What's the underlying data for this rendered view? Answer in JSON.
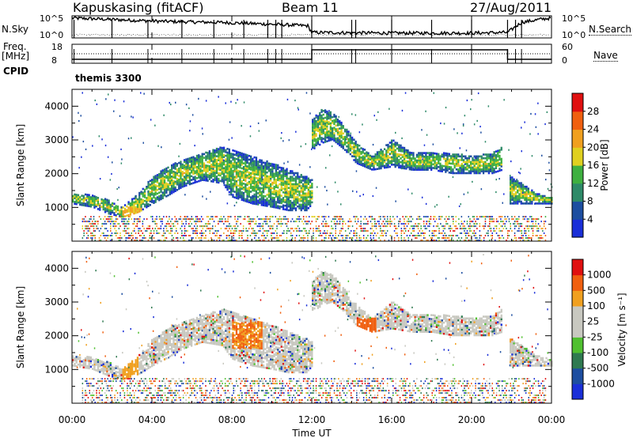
{
  "header": {
    "station": "Kapuskasing (fitACF)",
    "beam": "Beam 11",
    "date": "27/Aug/2011"
  },
  "status_panel": {
    "nsky_label": "N.Sky",
    "nsearch_label": "N.Search",
    "nsky_ticks": [
      "10^5",
      "10^0"
    ],
    "nsearch_ticks": [
      "10^5",
      "10^0"
    ],
    "freq_label_1": "Freq.",
    "freq_label_2": "[MHz]",
    "freq_ticks": [
      "18",
      "8"
    ],
    "nave_label": "Nave",
    "nave_ticks": [
      "60",
      "0"
    ],
    "cpid_label": "CPID",
    "cpid_value": "themis 3300"
  },
  "colors": {
    "power_scale": [
      "#1a2fd8",
      "#1d4ea0",
      "#2e8a68",
      "#3fb040",
      "#e0d020",
      "#f0a020",
      "#f06010",
      "#e01010"
    ],
    "velocity_scale": [
      "#e01010",
      "#f06010",
      "#f0a020",
      "#c8c8c0",
      "#c8c8c0",
      "#50c030",
      "#2f7a50",
      "#1d4ea0",
      "#1a2fd8"
    ],
    "ground_scatter": "#c8c8c0"
  },
  "chart_data": [
    {
      "type": "heatmap",
      "panel": "power",
      "xlabel": "Time UT",
      "ylabel": "Slant Range [km]",
      "xlim": [
        0,
        24
      ],
      "ylim": [
        0,
        4500
      ],
      "x_tick_labels": [
        "00:00",
        "04:00",
        "08:00",
        "12:00",
        "16:00",
        "20:00",
        "00:00"
      ],
      "y_ticks": [
        1000,
        2000,
        3000,
        4000
      ],
      "colorbar_label": "Power [dB]",
      "colorbar_ticks": [
        4,
        8,
        12,
        16,
        20,
        24,
        28
      ],
      "echo_bands": [
        {
          "t": [
            0.0,
            1.0,
            1.8,
            2.5,
            3.3,
            4.0,
            4.8,
            5.5,
            6.5,
            7.5,
            8.0,
            9.0,
            10.0,
            10.8,
            11.7,
            12.0
          ],
          "lo": [
            1100,
            1000,
            800,
            700,
            850,
            1100,
            1350,
            1600,
            1800,
            1700,
            1300,
            1100,
            1000,
            900,
            900,
            1100
          ],
          "hi": [
            1400,
            1350,
            1200,
            1000,
            1400,
            1900,
            2200,
            2400,
            2600,
            2800,
            2700,
            2500,
            2300,
            2100,
            1900,
            1800
          ]
        },
        {
          "t": [
            12.0,
            12.5,
            13.0,
            13.6,
            14.2,
            15.0,
            16.0,
            17.0,
            18.0,
            19.0,
            20.0,
            21.0,
            21.5
          ],
          "lo": [
            2700,
            2900,
            3000,
            2700,
            2300,
            2100,
            2200,
            2100,
            2100,
            2000,
            2000,
            2000,
            2100
          ],
          "hi": [
            3600,
            3900,
            3800,
            3400,
            2900,
            2500,
            3000,
            2600,
            2600,
            2600,
            2500,
            2600,
            2800
          ]
        },
        {
          "t": [
            21.9,
            22.5,
            23.2,
            24.0
          ],
          "lo": [
            1100,
            1100,
            1100,
            1100
          ],
          "hi": [
            1900,
            1700,
            1400,
            1300
          ]
        }
      ],
      "near_range_noise_km": [
        0,
        900
      ]
    },
    {
      "type": "heatmap",
      "panel": "velocity",
      "xlabel": "Time UT",
      "ylabel": "Slant Range [km]",
      "xlim": [
        0,
        24
      ],
      "ylim": [
        0,
        4500
      ],
      "x_tick_labels": [
        "00:00",
        "04:00",
        "08:00",
        "12:00",
        "16:00",
        "20:00",
        "00:00"
      ],
      "y_ticks": [
        1000,
        2000,
        3000,
        4000
      ],
      "colorbar_label": "Velocity [m s⁻¹]",
      "colorbar_ticks": [
        "1000",
        "500",
        "100",
        "25",
        "-25",
        "-100",
        "-500",
        "-1000"
      ]
    }
  ]
}
